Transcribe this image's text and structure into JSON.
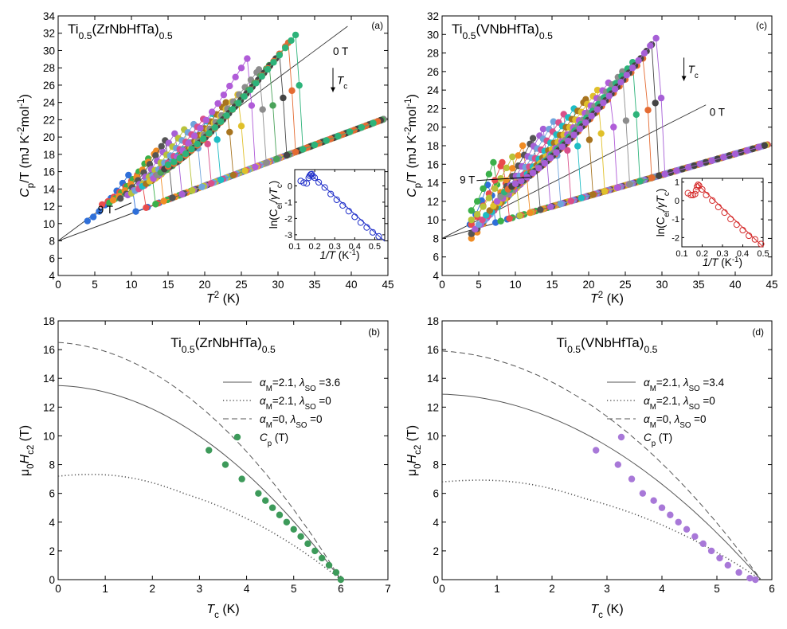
{
  "chart_data": [
    {
      "type": "scatter",
      "panel_label": "(a)",
      "title": {
        "base": "Ti",
        "sub1": "0.5",
        "mid": "(ZrNbHfTa)",
        "sub2": "0.5"
      },
      "xlabel": {
        "main": "T",
        "sup": "2",
        "unit": " (K)"
      },
      "ylabel": {
        "main": "C",
        "sub": "p",
        "mid": "/T (mJ K",
        "sup1": "-2",
        "mid2": "mol",
        "sup2": "-1",
        "end": ")"
      },
      "xlim": [
        0,
        45
      ],
      "ylim": [
        4,
        34
      ],
      "xticks": [
        "0",
        "5",
        "10",
        "15",
        "20",
        "25",
        "30",
        "35",
        "40",
        "45"
      ],
      "yticks": [
        "4",
        "6",
        "8",
        "10",
        "12",
        "14",
        "16",
        "18",
        "20",
        "22",
        "24",
        "26",
        "28",
        "30",
        "32",
        "34"
      ],
      "annotations": {
        "top_field": "0 T",
        "bottom_field": "9 T",
        "tc": "T",
        "tc_sub": "c"
      },
      "normal_state_line": [
        [
          0,
          8.0
        ],
        [
          45,
          22.2
        ]
      ],
      "zero_field_fit": [
        [
          0,
          8.0
        ],
        [
          39.5,
          32.8
        ]
      ],
      "field_curves": [
        {
          "color": "#2e6fd9",
          "tc2": 9.6,
          "peak": 15.6,
          "base_start": 4.0,
          "base_value": 10.3
        },
        {
          "color": "#e94c4c",
          "tc2": 11.0,
          "peak": 15.8,
          "base_start": 6.0,
          "base_value": 12.2
        },
        {
          "color": "#3bb04a",
          "tc2": 12.3,
          "peak": 17.5,
          "base_start": 7.0,
          "base_value": 12.4
        },
        {
          "color": "#f08c24",
          "tc2": 13.4,
          "peak": 18.4,
          "base_start": 7.5,
          "base_value": 12.7
        },
        {
          "color": "#555555",
          "tc2": 14.6,
          "peak": 19.6,
          "base_start": 8.5,
          "base_value": 12.9
        },
        {
          "color": "#a65fd6",
          "tc2": 15.9,
          "peak": 20.4,
          "base_start": 9.5,
          "base_value": 13.3
        },
        {
          "color": "#b8c23a",
          "tc2": 17.3,
          "peak": 21.0,
          "base_start": 10.0,
          "base_value": 13.5
        },
        {
          "color": "#6fa4dc",
          "tc2": 18.6,
          "peak": 21.6,
          "base_start": 10.5,
          "base_value": 13.8
        },
        {
          "color": "#d94f8a",
          "tc2": 19.9,
          "peak": 22.2,
          "base_start": 11.0,
          "base_value": 14.0
        },
        {
          "color": "#1ebcc4",
          "tc2": 21.2,
          "peak": 22.8,
          "base_start": 11.5,
          "base_value": 14.3
        },
        {
          "color": "#a8741f",
          "tc2": 22.9,
          "peak": 24.0,
          "base_start": 12.0,
          "base_value": 14.6
        },
        {
          "color": "#e0c02a",
          "tc2": 24.5,
          "peak": 24.9,
          "base_start": 12.5,
          "base_value": 14.9
        },
        {
          "color": "#b05cd8",
          "tc2": 25.9,
          "peak": 29.2,
          "base_start": 13.0,
          "base_value": 15.2
        },
        {
          "color": "#8c8c8c",
          "tc2": 27.4,
          "peak": 27.8,
          "base_start": 13.5,
          "base_value": 15.6
        },
        {
          "color": "#4aa35a",
          "tc2": 28.8,
          "peak": 28.3,
          "base_start": 14.0,
          "base_value": 15.9
        },
        {
          "color": "#444444",
          "tc2": 30.2,
          "peak": 29.6,
          "base_start": 14.5,
          "base_value": 16.3
        },
        {
          "color": "#e46b32",
          "tc2": 31.4,
          "peak": 30.9,
          "base_start": 15.0,
          "base_value": 16.6
        },
        {
          "color": "#2db37a",
          "tc2": 32.4,
          "peak": 31.8,
          "base_start": 15.0,
          "base_value": 16.8
        }
      ],
      "inset": {
        "xlabel": {
          "main": "1/T",
          "unit": " (K",
          "sup": "-1",
          "end": ")"
        },
        "ylabel": {
          "main": "ln(C",
          "sub1": "el",
          "mid": "/γT",
          "sub2": "c",
          "end": ")"
        },
        "xlim": [
          0.1,
          0.55
        ],
        "ylim": [
          -3.3,
          1.0
        ],
        "xticks": [
          "0.1",
          "0.2",
          "0.3",
          "0.4",
          "0.5"
        ],
        "yticks": [
          "-3",
          "-2",
          "-1",
          "0"
        ],
        "annotation": "T",
        "annotation_sub": "c",
        "color": "#1f2ec9",
        "points": [
          [
            0.13,
            0.3
          ],
          [
            0.145,
            0.2
          ],
          [
            0.16,
            0.15
          ],
          [
            0.17,
            0.5
          ],
          [
            0.175,
            0.62
          ],
          [
            0.18,
            0.7
          ],
          [
            0.185,
            0.72
          ],
          [
            0.19,
            0.6
          ],
          [
            0.2,
            0.5
          ],
          [
            0.22,
            0.22
          ],
          [
            0.25,
            -0.1
          ],
          [
            0.28,
            -0.5
          ],
          [
            0.31,
            -0.85
          ],
          [
            0.34,
            -1.2
          ],
          [
            0.37,
            -1.55
          ],
          [
            0.4,
            -1.9
          ],
          [
            0.43,
            -2.25
          ],
          [
            0.46,
            -2.55
          ],
          [
            0.49,
            -2.85
          ],
          [
            0.52,
            -3.1
          ]
        ],
        "fit": [
          [
            0.18,
            0.7
          ],
          [
            0.55,
            -3.4
          ]
        ]
      }
    },
    {
      "type": "line",
      "panel_label": "(b)",
      "title": {
        "base": "Ti",
        "sub1": "0.5",
        "mid": "(ZrNbHfTa)",
        "sub2": "0.5"
      },
      "xlabel": {
        "main": "T",
        "sub": "c",
        "unit": " (K)"
      },
      "ylabel": {
        "main": "μ",
        "sub1": "0",
        "mid": "H",
        "sub2": "c2",
        "unit": " (T)"
      },
      "xlim": [
        0,
        7
      ],
      "ylim": [
        0,
        18
      ],
      "xticks": [
        "0",
        "1",
        "2",
        "3",
        "4",
        "5",
        "6",
        "7"
      ],
      "yticks": [
        "0",
        "2",
        "4",
        "6",
        "8",
        "10",
        "12",
        "14",
        "16",
        "18"
      ],
      "legend": [
        {
          "style": "solid",
          "p1": "α",
          "s1": "M",
          "t1": "=2.1, ",
          "p2": "λ",
          "s2": "SO",
          "t2": " =3.6"
        },
        {
          "style": "dotted",
          "p1": "α",
          "s1": "M",
          "t1": "=2.1, ",
          "p2": "λ",
          "s2": "SO",
          "t2": " =0"
        },
        {
          "style": "dashed",
          "p1": "α",
          "s1": "M",
          "t1": "=0,    ",
          "p2": "λ",
          "s2": "SO",
          "t2": " =0"
        },
        {
          "style": "marker",
          "p1": "C",
          "s1": "p",
          "t1": " (T)",
          "p2": "",
          "s2": "",
          "t2": ""
        }
      ],
      "tc0": 6.0,
      "series": [
        {
          "style": "solid",
          "h0": 13.5
        },
        {
          "style": "dotted",
          "h0": 7.2
        },
        {
          "style": "dashed",
          "h0": 16.5
        }
      ],
      "marker_color": "#3d9a5a",
      "points": [
        [
          3.2,
          9.0
        ],
        [
          3.55,
          8.0
        ],
        [
          3.9,
          7.0
        ],
        [
          4.25,
          6.0
        ],
        [
          4.4,
          5.5
        ],
        [
          4.55,
          5.0
        ],
        [
          4.7,
          4.5
        ],
        [
          4.85,
          4.0
        ],
        [
          5.0,
          3.5
        ],
        [
          5.15,
          3.0
        ],
        [
          5.3,
          2.5
        ],
        [
          5.45,
          2.0
        ],
        [
          5.6,
          1.5
        ],
        [
          5.75,
          1.0
        ],
        [
          5.9,
          0.5
        ],
        [
          6.0,
          0.0
        ]
      ]
    },
    {
      "type": "scatter",
      "panel_label": "(c)",
      "title": {
        "base": "Ti",
        "sub1": "0.5",
        "mid": "(VNbHfTa)",
        "sub2": "0.5"
      },
      "xlabel": {
        "main": "T",
        "sup": "2",
        "unit": " (K)"
      },
      "ylabel": {
        "main": "C",
        "sub": "p",
        "mid": "/T (mJ K",
        "sup1": "-2",
        "mid2": "mol",
        "sup2": "-1",
        "end": ")"
      },
      "xlim": [
        0,
        45
      ],
      "ylim": [
        4,
        32
      ],
      "xticks": [
        "0",
        "5",
        "10",
        "15",
        "20",
        "25",
        "30",
        "35",
        "40",
        "45"
      ],
      "yticks": [
        "4",
        "6",
        "8",
        "10",
        "12",
        "14",
        "16",
        "18",
        "20",
        "22",
        "24",
        "26",
        "28",
        "30",
        "32"
      ],
      "annotations": {
        "top_field": "0 T",
        "bottom_field": "9 T",
        "tc": "T",
        "tc_sub": "c"
      },
      "normal_state_line": [
        [
          0,
          8.0
        ],
        [
          45,
          18.2
        ]
      ],
      "zero_field_fit": [
        [
          0,
          8.0
        ],
        [
          36.0,
          22.4
        ]
      ],
      "field_curves": [
        {
          "color": "#2e6fd9",
          "tc2": 6.3,
          "peak": 14.0,
          "base_start": 3.8,
          "base_value": 9.5
        },
        {
          "color": "#3bb04a",
          "tc2": 7.0,
          "peak": 16.2,
          "base_start": 4.0,
          "base_value": 11.0
        },
        {
          "color": "#e94c4c",
          "tc2": 8.2,
          "peak": 16.2,
          "base_start": 4.0,
          "base_value": 9.5
        },
        {
          "color": "#b8c23a",
          "tc2": 9.6,
          "peak": 16.8,
          "base_start": 4.0,
          "base_value": 10.0
        },
        {
          "color": "#f08c24",
          "tc2": 11.0,
          "peak": 18.0,
          "base_start": 4.0,
          "base_value": 8.0
        },
        {
          "color": "#555555",
          "tc2": 12.4,
          "peak": 18.8,
          "base_start": 4.0,
          "base_value": 8.5
        },
        {
          "color": "#a65fd6",
          "tc2": 13.8,
          "peak": 19.8,
          "base_start": 4.5,
          "base_value": 9.0
        },
        {
          "color": "#6fa4dc",
          "tc2": 15.2,
          "peak": 20.6,
          "base_start": 5.0,
          "base_value": 9.5
        },
        {
          "color": "#d94f8a",
          "tc2": 16.6,
          "peak": 21.4,
          "base_start": 5.5,
          "base_value": 10.0
        },
        {
          "color": "#1ebcc4",
          "tc2": 18.0,
          "peak": 22.0,
          "base_start": 6.0,
          "base_value": 10.5
        },
        {
          "color": "#a8741f",
          "tc2": 19.6,
          "peak": 23.0,
          "base_start": 6.5,
          "base_value": 11.0
        },
        {
          "color": "#e0c02a",
          "tc2": 21.2,
          "peak": 24.0,
          "base_start": 7.0,
          "base_value": 11.5
        },
        {
          "color": "#b05cd8",
          "tc2": 22.9,
          "peak": 25.0,
          "base_start": 7.5,
          "base_value": 12.0
        },
        {
          "color": "#8c8c8c",
          "tc2": 24.6,
          "peak": 26.0,
          "base_start": 8.0,
          "base_value": 12.5
        },
        {
          "color": "#2db37a",
          "tc2": 26.0,
          "peak": 27.0,
          "base_start": 8.5,
          "base_value": 13.0
        },
        {
          "color": "#e46b32",
          "tc2": 27.6,
          "peak": 27.6,
          "base_start": 9.0,
          "base_value": 13.3
        },
        {
          "color": "#444444",
          "tc2": 28.6,
          "peak": 28.9,
          "base_start": 9.5,
          "base_value": 13.6
        },
        {
          "color": "#a65fd6",
          "tc2": 29.4,
          "peak": 29.8,
          "base_start": 10.0,
          "base_value": 13.9
        }
      ],
      "inset": {
        "xlabel": {
          "main": "1/T",
          "unit": " (K",
          "sup": "-1",
          "end": ")"
        },
        "ylabel": {
          "main": "ln(C",
          "sub1": "el",
          "mid": "/γT",
          "sub2": "c",
          "end": ")"
        },
        "xlim": [
          0.1,
          0.5
        ],
        "ylim": [
          -2.5,
          1.2
        ],
        "xticks": [
          "0.1",
          "0.2",
          "0.3",
          "0.4",
          "0.5"
        ],
        "yticks": [
          "-2",
          "-1",
          "0",
          "1"
        ],
        "annotation": "T",
        "annotation_sub": "c",
        "color": "#d42a2a",
        "points": [
          [
            0.13,
            0.4
          ],
          [
            0.145,
            0.3
          ],
          [
            0.155,
            0.3
          ],
          [
            0.165,
            0.35
          ],
          [
            0.17,
            0.55
          ],
          [
            0.175,
            0.75
          ],
          [
            0.18,
            0.85
          ],
          [
            0.185,
            0.8
          ],
          [
            0.2,
            0.6
          ],
          [
            0.22,
            0.3
          ],
          [
            0.25,
            0.0
          ],
          [
            0.28,
            -0.35
          ],
          [
            0.31,
            -0.65
          ],
          [
            0.34,
            -1.0
          ],
          [
            0.37,
            -1.3
          ],
          [
            0.4,
            -1.6
          ],
          [
            0.43,
            -1.9
          ],
          [
            0.46,
            -2.1
          ],
          [
            0.49,
            -2.35
          ]
        ],
        "fit": [
          [
            0.18,
            0.85
          ],
          [
            0.5,
            -2.5
          ]
        ]
      }
    },
    {
      "type": "line",
      "panel_label": "(d)",
      "title": {
        "base": "Ti",
        "sub1": "0.5",
        "mid": "(VNbHfTa)",
        "sub2": "0.5"
      },
      "xlabel": {
        "main": "T",
        "sub": "c",
        "unit": " (K)"
      },
      "ylabel": {
        "main": "μ",
        "sub1": "0",
        "mid": "H",
        "sub2": "c2",
        "unit": " (T)"
      },
      "xlim": [
        0,
        6
      ],
      "ylim": [
        0,
        18
      ],
      "xticks": [
        "0",
        "1",
        "2",
        "3",
        "4",
        "5",
        "6"
      ],
      "yticks": [
        "0",
        "2",
        "4",
        "6",
        "8",
        "10",
        "12",
        "14",
        "16",
        "18"
      ],
      "legend": [
        {
          "style": "solid",
          "p1": "α",
          "s1": "M",
          "t1": "=2.1, ",
          "p2": "λ",
          "s2": "SO",
          "t2": " =3.4"
        },
        {
          "style": "dotted",
          "p1": "α",
          "s1": "M",
          "t1": "=2.1, ",
          "p2": "λ",
          "s2": "SO",
          "t2": " =0"
        },
        {
          "style": "dashed",
          "p1": "α",
          "s1": "M",
          "t1": "=0,     ",
          "p2": "λ",
          "s2": "SO",
          "t2": " =0"
        },
        {
          "style": "marker",
          "p1": "C",
          "s1": "p",
          "t1": " (T)",
          "p2": "",
          "s2": "",
          "t2": ""
        }
      ],
      "tc0": 5.8,
      "series": [
        {
          "style": "solid",
          "h0": 12.9
        },
        {
          "style": "dotted",
          "h0": 6.8
        },
        {
          "style": "dashed",
          "h0": 15.9
        }
      ],
      "marker_color": "#a878d8",
      "points": [
        [
          2.8,
          9.0
        ],
        [
          3.2,
          8.0
        ],
        [
          3.45,
          7.0
        ],
        [
          3.65,
          6.0
        ],
        [
          3.85,
          5.5
        ],
        [
          4.0,
          5.0
        ],
        [
          4.15,
          4.5
        ],
        [
          4.3,
          4.0
        ],
        [
          4.45,
          3.5
        ],
        [
          4.6,
          3.0
        ],
        [
          4.75,
          2.5
        ],
        [
          4.9,
          2.0
        ],
        [
          5.05,
          1.5
        ],
        [
          5.2,
          1.0
        ],
        [
          5.4,
          0.5
        ],
        [
          5.6,
          0.1
        ],
        [
          5.7,
          0.0
        ]
      ]
    }
  ]
}
